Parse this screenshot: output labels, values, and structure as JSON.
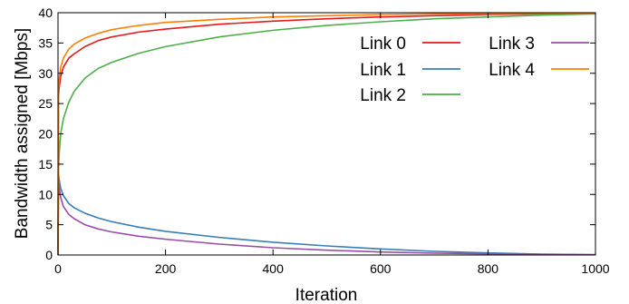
{
  "chart_data": {
    "type": "line",
    "xlabel": "Iteration",
    "ylabel": "Bandwidth assigned [Mbps]",
    "xlim": [
      0,
      1000
    ],
    "ylim": [
      0,
      40
    ],
    "xticks": [
      0,
      200,
      400,
      600,
      800,
      1000
    ],
    "yticks": [
      0,
      5,
      10,
      15,
      20,
      25,
      30,
      35,
      40
    ],
    "grid": false,
    "legend_position": "top-right",
    "series": [
      {
        "name": "Link 0",
        "color": "#e41a1c",
        "x": [
          0,
          1,
          2,
          5,
          10,
          20,
          30,
          50,
          75,
          100,
          150,
          200,
          300,
          400,
          500,
          600,
          700,
          800,
          900,
          1000
        ],
        "y": [
          0,
          26.0,
          27.5,
          29.5,
          31.0,
          32.5,
          33.2,
          34.4,
          35.4,
          36.0,
          36.8,
          37.3,
          38.1,
          38.6,
          39.0,
          39.3,
          39.5,
          39.7,
          39.8,
          39.9
        ]
      },
      {
        "name": "Link 1",
        "color": "#377eb8",
        "x": [
          0,
          1,
          2,
          5,
          10,
          20,
          30,
          50,
          75,
          100,
          150,
          200,
          300,
          400,
          500,
          600,
          700,
          800,
          900,
          1000
        ],
        "y": [
          0,
          13.5,
          12.5,
          11.0,
          9.8,
          8.5,
          7.8,
          6.9,
          6.1,
          5.5,
          4.6,
          3.9,
          2.9,
          2.1,
          1.5,
          1.0,
          0.6,
          0.35,
          0.15,
          0.05
        ]
      },
      {
        "name": "Link 2",
        "color": "#4daf4a",
        "x": [
          0,
          1,
          2,
          5,
          10,
          20,
          30,
          50,
          75,
          100,
          150,
          200,
          300,
          400,
          500,
          600,
          700,
          800,
          900,
          1000
        ],
        "y": [
          0,
          14.0,
          16.5,
          20.0,
          22.5,
          25.2,
          27.0,
          29.2,
          30.8,
          31.8,
          33.3,
          34.4,
          36.0,
          37.1,
          37.9,
          38.5,
          39.0,
          39.3,
          39.6,
          39.8
        ]
      },
      {
        "name": "Link 3",
        "color": "#984ea3",
        "x": [
          0,
          1,
          2,
          5,
          10,
          20,
          30,
          50,
          75,
          100,
          150,
          200,
          300,
          400,
          500,
          600,
          700,
          800,
          900,
          1000
        ],
        "y": [
          0,
          12.5,
          11.3,
          9.5,
          8.0,
          6.7,
          6.0,
          5.0,
          4.3,
          3.8,
          3.1,
          2.6,
          1.8,
          1.2,
          0.8,
          0.5,
          0.3,
          0.2,
          0.1,
          0.05
        ]
      },
      {
        "name": "Link 4",
        "color": "#ff7f00",
        "x": [
          0,
          1,
          2,
          5,
          10,
          20,
          30,
          50,
          75,
          100,
          150,
          200,
          300,
          400,
          500,
          600,
          700,
          800,
          900,
          1000
        ],
        "y": [
          0,
          27.5,
          29.0,
          31.0,
          32.5,
          34.0,
          34.8,
          35.8,
          36.6,
          37.2,
          37.9,
          38.4,
          38.9,
          39.3,
          39.5,
          39.7,
          39.8,
          39.85,
          39.9,
          39.95
        ]
      }
    ]
  }
}
